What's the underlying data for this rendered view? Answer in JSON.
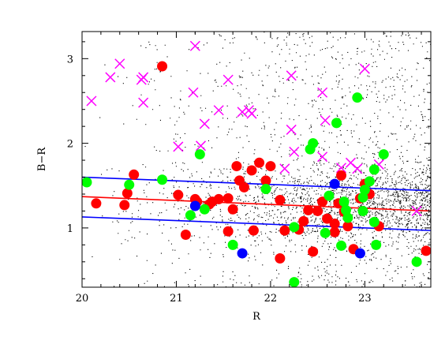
{
  "chart_data": {
    "type": "scatter",
    "xlabel": "R",
    "ylabel": "B−R",
    "xlim": [
      20.0,
      23.7
    ],
    "ylim": [
      0.3,
      3.32
    ],
    "xticks": [
      20,
      21,
      22,
      23
    ],
    "xtick_labels": [
      "20",
      "21",
      "22",
      "23"
    ],
    "yticks": [
      1,
      2,
      3
    ],
    "ytick_labels": [
      "1",
      "2",
      "3"
    ],
    "grid": false,
    "background_field": {
      "marker": "dot",
      "color": "#000000",
      "count": 14000,
      "x_range": [
        20.0,
        23.7
      ],
      "y_range": [
        0.3,
        3.32
      ]
    },
    "series": [
      {
        "marker": "cross",
        "color": "#ff00ff",
        "points": [
          [
            20.1,
            2.5
          ],
          [
            20.3,
            2.78
          ],
          [
            20.4,
            2.94
          ],
          [
            20.65,
            2.78
          ],
          [
            20.63,
            2.75
          ],
          [
            20.65,
            2.48
          ],
          [
            21.02,
            1.96
          ],
          [
            21.18,
            2.6
          ],
          [
            21.2,
            3.15
          ],
          [
            21.3,
            2.23
          ],
          [
            21.26,
            1.97
          ],
          [
            21.45,
            2.39
          ],
          [
            21.55,
            2.75
          ],
          [
            21.7,
            2.37
          ],
          [
            21.77,
            2.39
          ],
          [
            21.8,
            2.35
          ],
          [
            22.15,
            1.7
          ],
          [
            22.22,
            2.16
          ],
          [
            22.25,
            1.9
          ],
          [
            22.22,
            2.8
          ],
          [
            22.55,
            2.6
          ],
          [
            22.58,
            2.27
          ],
          [
            22.55,
            1.84
          ],
          [
            22.75,
            1.71
          ],
          [
            22.85,
            1.77
          ],
          [
            23.0,
            2.88
          ],
          [
            23.15,
            1.75
          ],
          [
            22.92,
            1.7
          ],
          [
            23.55,
            1.2
          ]
        ]
      },
      {
        "marker": "circle",
        "color": "#ff0000",
        "points": [
          [
            20.15,
            1.29
          ],
          [
            20.45,
            1.27
          ],
          [
            20.48,
            1.41
          ],
          [
            20.55,
            1.63
          ],
          [
            20.85,
            2.91
          ],
          [
            21.02,
            1.39
          ],
          [
            21.1,
            0.92
          ],
          [
            21.2,
            1.34
          ],
          [
            21.22,
            1.31
          ],
          [
            21.35,
            1.28
          ],
          [
            21.38,
            1.31
          ],
          [
            21.45,
            1.34
          ],
          [
            21.55,
            1.35
          ],
          [
            21.55,
            0.96
          ],
          [
            21.6,
            1.22
          ],
          [
            21.64,
            1.73
          ],
          [
            21.67,
            1.56
          ],
          [
            21.72,
            1.48
          ],
          [
            21.8,
            1.68
          ],
          [
            21.82,
            0.97
          ],
          [
            21.88,
            1.77
          ],
          [
            21.95,
            1.56
          ],
          [
            22.0,
            1.73
          ],
          [
            22.1,
            1.33
          ],
          [
            22.15,
            0.97
          ],
          [
            22.1,
            0.64
          ],
          [
            22.3,
            0.98
          ],
          [
            22.35,
            1.08
          ],
          [
            22.4,
            1.21
          ],
          [
            22.45,
            0.72
          ],
          [
            22.5,
            1.2
          ],
          [
            22.55,
            1.31
          ],
          [
            22.6,
            1.11
          ],
          [
            22.68,
            1.05
          ],
          [
            22.68,
            0.95
          ],
          [
            22.72,
            1.29
          ],
          [
            22.75,
            1.62
          ],
          [
            22.78,
            1.19
          ],
          [
            22.82,
            1.02
          ],
          [
            22.88,
            0.75
          ],
          [
            22.95,
            1.35
          ],
          [
            23.0,
            1.52
          ],
          [
            23.05,
            1.4
          ],
          [
            23.15,
            1.02
          ],
          [
            23.65,
            0.73
          ]
        ]
      },
      {
        "marker": "circle",
        "color": "#00ff00",
        "points": [
          [
            20.05,
            1.54
          ],
          [
            20.5,
            1.51
          ],
          [
            20.85,
            1.57
          ],
          [
            21.15,
            1.15
          ],
          [
            21.25,
            1.87
          ],
          [
            21.3,
            1.22
          ],
          [
            21.6,
            0.8
          ],
          [
            21.95,
            1.46
          ],
          [
            22.25,
            0.36
          ],
          [
            22.25,
            1.01
          ],
          [
            22.42,
            1.93
          ],
          [
            22.45,
            2.0
          ],
          [
            22.58,
            0.94
          ],
          [
            22.62,
            1.38
          ],
          [
            22.7,
            2.24
          ],
          [
            22.75,
            0.79
          ],
          [
            22.78,
            1.31
          ],
          [
            22.8,
            1.21
          ],
          [
            22.82,
            1.12
          ],
          [
            22.92,
            2.54
          ],
          [
            22.98,
            1.36
          ],
          [
            22.98,
            1.2
          ],
          [
            23.0,
            1.45
          ],
          [
            23.05,
            1.55
          ],
          [
            23.1,
            1.69
          ],
          [
            23.1,
            1.07
          ],
          [
            23.12,
            0.8
          ],
          [
            23.2,
            1.87
          ],
          [
            23.55,
            0.6
          ]
        ]
      },
      {
        "marker": "circle",
        "color": "#0000ff",
        "points": [
          [
            21.2,
            1.26
          ],
          [
            21.7,
            0.7
          ],
          [
            22.68,
            1.52
          ],
          [
            22.95,
            0.7
          ]
        ]
      }
    ],
    "lines": [
      {
        "color": "#0000ff",
        "x": [
          20.0,
          23.7
        ],
        "y": [
          1.6,
          1.44
        ]
      },
      {
        "color": "#ff0000",
        "x": [
          20.0,
          23.7
        ],
        "y": [
          1.37,
          1.2
        ]
      },
      {
        "color": "#0000ff",
        "x": [
          20.0,
          23.7
        ],
        "y": [
          1.13,
          0.97
        ]
      }
    ]
  }
}
